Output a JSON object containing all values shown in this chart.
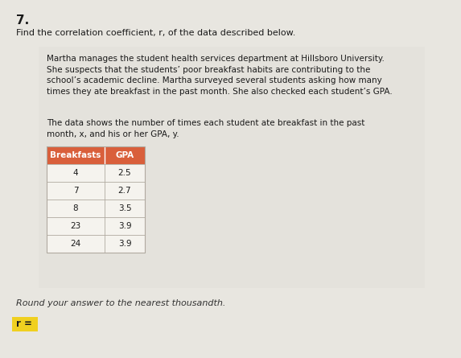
{
  "question_number": "7.",
  "question_text": "Find the correlation coefficient, r, of the data described below.",
  "paragraph1": "Martha manages the student health services department at Hillsboro University.\nShe suspects that the students’ poor breakfast habits are contributing to the\nschool’s academic decline. Martha surveyed several students asking how many\ntimes they ate breakfast in the past month. She also checked each student’s GPA.",
  "paragraph2": "The data shows the number of times each student ate breakfast in the past\nmonth, x, and his or her GPA, y.",
  "table_headers": [
    "Breakfasts",
    "GPA"
  ],
  "table_data": [
    [
      4,
      2.5
    ],
    [
      7,
      2.7
    ],
    [
      8,
      3.5
    ],
    [
      23,
      3.9
    ],
    [
      24,
      3.9
    ]
  ],
  "footer_text": "Round your answer to the nearest thousandth.",
  "answer_label": "r =",
  "bg_color": "#e8e6e0",
  "header_bg_color": "#d95f3b",
  "header_text_color": "#ffffff",
  "table_cell_bg": "#f5f3ee",
  "table_border_color": "#b0aaa0",
  "answer_highlight": "#f0d020",
  "inner_box_bg": "#e4e2dc"
}
